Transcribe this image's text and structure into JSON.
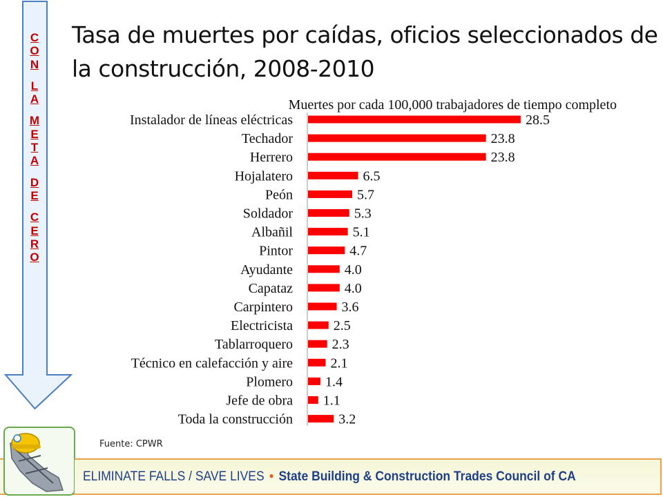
{
  "slide": {
    "title": "Tasa de muertes por caídas, oficios seleccionados de la construcción, 2008-2010",
    "arrow_letters": [
      [
        "C",
        "O",
        "N"
      ],
      [
        "L",
        "A"
      ],
      [
        "M",
        "E",
        "T",
        "A"
      ],
      [
        "D",
        "E"
      ],
      [
        "C",
        "E",
        "R",
        "O"
      ]
    ],
    "source": "Fuente: CPWR",
    "footer_left": "ELIMINATE FALLS / SAVE LIVES",
    "footer_separator": "•",
    "footer_right": "State Building & Construction Trades Council of CA",
    "colors": {
      "bar": "#ff0000",
      "arrow_fill": "#eaf2fb",
      "arrow_stroke": "#4a7fc1",
      "letters": "#c00000",
      "footer_text": "#1f3f86",
      "footer_border": "#e8a24a"
    }
  },
  "chart_data": {
    "type": "bar",
    "orientation": "horizontal",
    "title": "Muertes por cada 100,000 trabajadores de tiempo completo",
    "categories": [
      "Instalador de líneas eléctricas",
      "Techador",
      "Herrero",
      "Hojalatero",
      "Peón",
      "Soldador",
      "Albañil",
      "Pintor",
      "Ayudante",
      "Capataz",
      "Carpintero",
      "Electricista",
      "Tablarroquero",
      "Técnico en calefacción y aire",
      "Plomero",
      "Jefe de obra",
      "Toda la construcción"
    ],
    "values": [
      28.5,
      23.8,
      23.8,
      6.5,
      5.7,
      5.3,
      5.1,
      4.7,
      4.0,
      4.0,
      3.6,
      2.5,
      2.3,
      2.1,
      1.4,
      1.1,
      3.2
    ],
    "value_labels": [
      "28.5",
      "23.8",
      "23.8",
      "6.5",
      "5.7",
      "5.3",
      "5.1",
      "4.7",
      "4.0",
      "4.0",
      "3.6",
      "2.5",
      "2.3",
      "2.1",
      "1.4",
      "1.1",
      "3.2"
    ],
    "xlim": [
      0,
      30
    ],
    "grid": false
  }
}
